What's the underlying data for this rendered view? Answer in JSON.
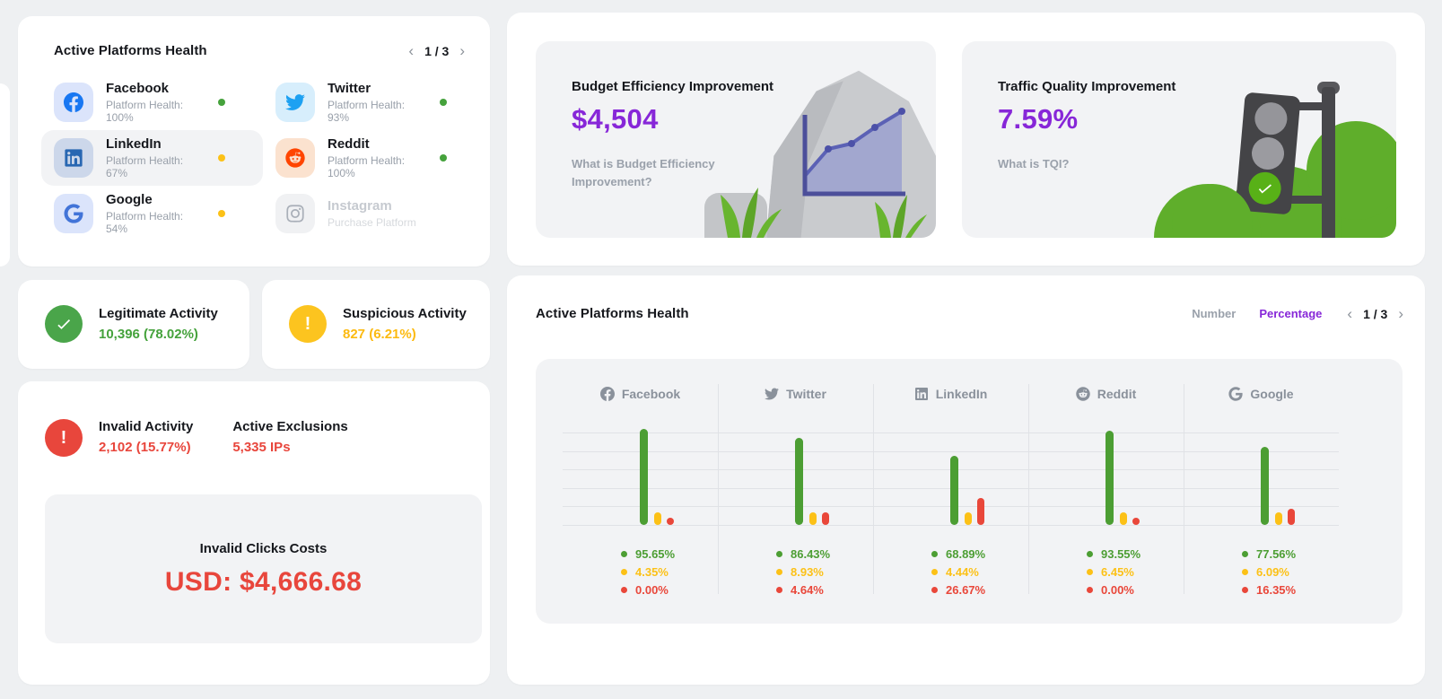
{
  "colors": {
    "green": "#45a23c",
    "yellow": "#fcc117",
    "red": "#e9473a",
    "purple": "#8727d8",
    "grey_text": "#9aa1ab",
    "dark_text": "#16181d",
    "bar_green": "#4c9e33",
    "bar_yellow": "#fcc117",
    "bar_red": "#e9473a",
    "chart_icon_grey": "#8a919b"
  },
  "platform_card": {
    "title": "Active Platforms Health",
    "pagination": "1 / 3",
    "prev_icon": "chevron-left-icon",
    "next_icon": "chevron-right-icon",
    "platforms": [
      {
        "name": "Facebook",
        "sub": "Platform Health: 100%",
        "status": "green",
        "icon": "facebook-icon",
        "icon_bg": "#dbe4fb",
        "brand_color": "#1877f2",
        "selected": false,
        "disabled": false
      },
      {
        "name": "Twitter",
        "sub": "Platform Health: 93%",
        "status": "green",
        "icon": "twitter-icon",
        "icon_bg": "#d7eefc",
        "brand_color": "#1da1f2",
        "selected": false,
        "disabled": false
      },
      {
        "name": "LinkedIn",
        "sub": "Platform Health: 67%",
        "status": "yellow",
        "icon": "linkedin-icon",
        "icon_bg": "#ccd7ea",
        "brand_color": "#2867b2",
        "selected": true,
        "disabled": false
      },
      {
        "name": "Reddit",
        "sub": "Platform Health: 100%",
        "status": "green",
        "icon": "reddit-icon",
        "icon_bg": "#fbe2cf",
        "brand_color": "#ff4500",
        "selected": false,
        "disabled": false
      },
      {
        "name": "Google",
        "sub": "Platform Health: 54%",
        "status": "yellow",
        "icon": "google-icon",
        "icon_bg": "#dbe4fb",
        "brand_color": "#4274d8",
        "selected": false,
        "disabled": false
      },
      {
        "name": "Instagram",
        "sub": "Purchase Platform",
        "status": "none",
        "icon": "instagram-icon",
        "icon_bg": "#f0f1f3",
        "brand_color": "#a9afb8",
        "selected": false,
        "disabled": true
      }
    ]
  },
  "budget_card": {
    "title": "Budget Efficiency Improvement",
    "value": "$4,504",
    "link": "What is Budget Efficiency Improvement?"
  },
  "tqi_card": {
    "title": "Traffic Quality Improvement",
    "value": "7.59%",
    "link": "What is TQI?"
  },
  "legitimate": {
    "title": "Legitimate Activity",
    "value": "10,396 (78.02%)",
    "icon": "check-circle-icon"
  },
  "suspicious": {
    "title": "Suspicious Activity",
    "value": "827 (6.21%)",
    "icon": "exclamation-circle-icon",
    "exclamation": "!"
  },
  "invalid": {
    "title": "Invalid Activity",
    "value": "2,102 (15.77%)",
    "icon": "exclamation-circle-icon",
    "exclamation": "!",
    "exclusions_title": "Active Exclusions",
    "exclusions_value": "5,335 IPs",
    "costs_title": "Invalid Clicks Costs",
    "costs_value": "USD: $4,666.68"
  },
  "chart_card": {
    "title": "Active Platforms Health",
    "toggle_number": "Number",
    "toggle_percentage": "Percentage",
    "active_toggle": "Percentage",
    "pagination": "1 / 3"
  },
  "chart_data": {
    "type": "bar",
    "title": "Active Platforms Health",
    "unit": "percent",
    "categories": [
      "Facebook",
      "Twitter",
      "LinkedIn",
      "Reddit",
      "Google"
    ],
    "category_icons": [
      "facebook-icon",
      "twitter-icon",
      "linkedin-icon",
      "reddit-icon",
      "google-icon"
    ],
    "series": [
      {
        "name": "legitimate",
        "color_key": "bar_green",
        "values": [
          95.65,
          86.43,
          68.89,
          93.55,
          77.56
        ]
      },
      {
        "name": "suspicious",
        "color_key": "bar_yellow",
        "values": [
          4.35,
          8.93,
          4.44,
          6.45,
          6.09
        ]
      },
      {
        "name": "invalid",
        "color_key": "bar_red",
        "values": [
          0.0,
          4.64,
          26.67,
          0.0,
          16.35
        ]
      }
    ],
    "value_format": "percent_2dp",
    "ylim": [
      0,
      100
    ],
    "grid": true,
    "legend_position": "below-columns"
  }
}
